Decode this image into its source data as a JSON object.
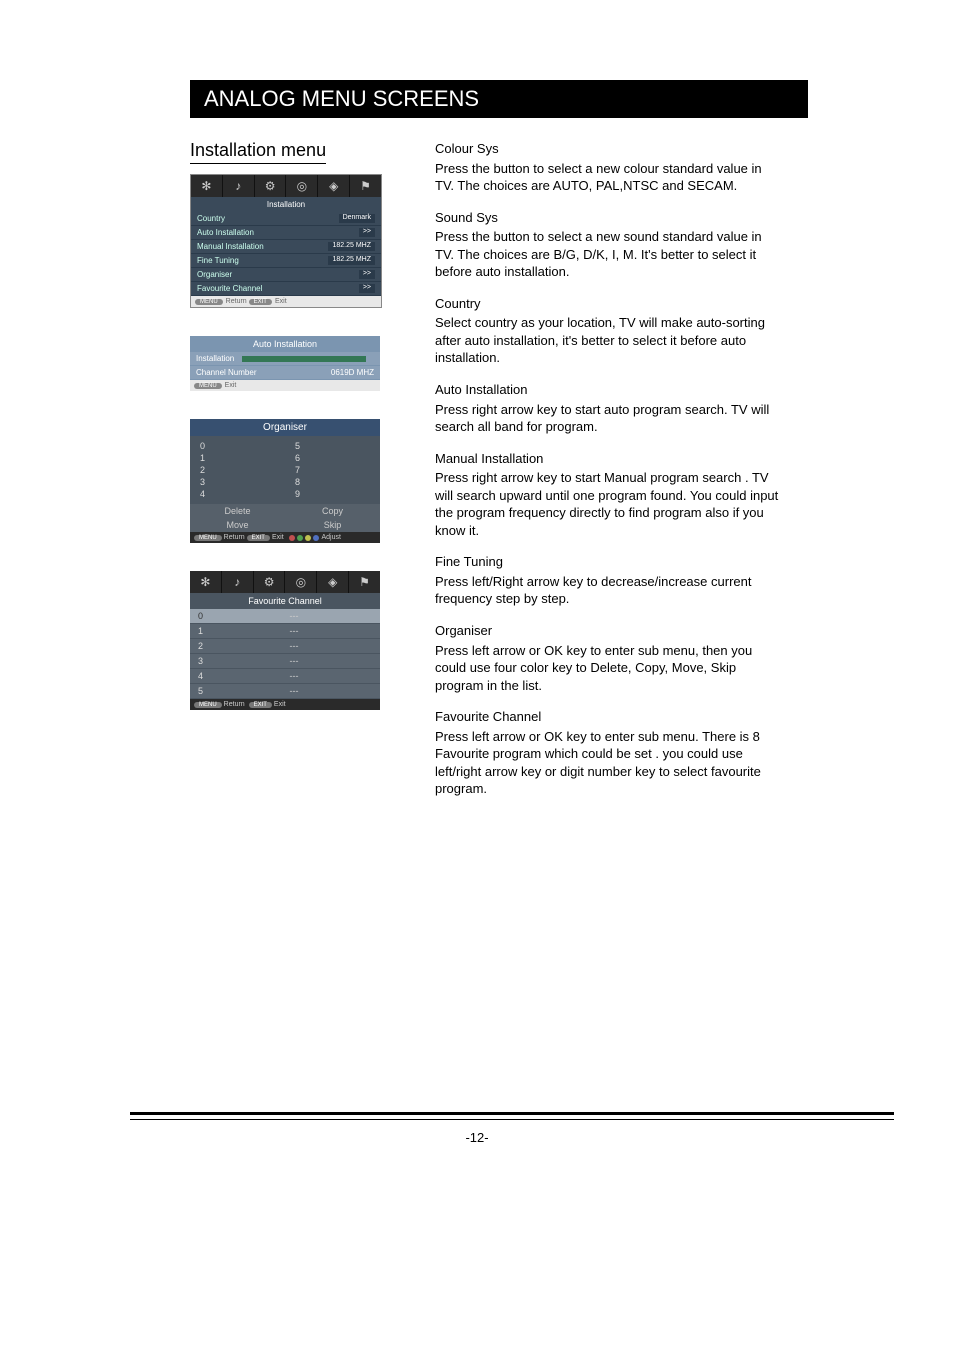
{
  "banner": "ANALOG MENU SCREENS",
  "subhead": "Installation menu",
  "pageNumber": "-12-",
  "inst": {
    "title": "Installation",
    "rows": [
      {
        "l": "Country",
        "r": "Denmark"
      },
      {
        "l": "Auto Installation",
        "r": ">>"
      },
      {
        "l": "Manual Installation",
        "r": "182.25 MHZ"
      },
      {
        "l": "Fine Tuning",
        "r": "182.25 MHZ"
      },
      {
        "l": "Organiser",
        "r": ">>"
      },
      {
        "l": "Favourite Channel",
        "r": ">>"
      }
    ],
    "footReturn": "Return",
    "footExit": "Exit"
  },
  "auto": {
    "title": "Auto Installation",
    "row1l": "Installation",
    "row2l": "Channel Number",
    "row2r": "0619D MHZ",
    "footExit": "Exit"
  },
  "org": {
    "title": "Organiser",
    "left": [
      "0",
      "1",
      "2",
      "3",
      "4"
    ],
    "right": [
      "5",
      "6",
      "7",
      "8",
      "9"
    ],
    "actions": [
      "Delete",
      "Copy",
      "Move",
      "Skip"
    ],
    "footReturn": "Return",
    "footExit": "Exit",
    "footAdjust": "Adjust",
    "dotColors": [
      "#c05050",
      "#50a050",
      "#c0c050",
      "#5070c0"
    ]
  },
  "fav": {
    "title": "Favourite Channel",
    "rows": [
      {
        "idx": "0",
        "val": "---",
        "sel": true
      },
      {
        "idx": "1",
        "val": "---"
      },
      {
        "idx": "2",
        "val": "---"
      },
      {
        "idx": "3",
        "val": "---"
      },
      {
        "idx": "4",
        "val": "---"
      },
      {
        "idx": "5",
        "val": "---"
      }
    ],
    "footReturn": "Return",
    "footExit": "Exit"
  },
  "sections": [
    {
      "t": "Colour Sys",
      "b": "Press the button to select a new colour standard value in TV. The choices are  AUTO, PAL,NTSC and  SECAM."
    },
    {
      "t": "Sound Sys",
      "b": "Press the button to select a new sound standard value in TV. The choices are  B/G, D/K,  I, M.  It's better to select it before auto installation."
    },
    {
      "t": "Country",
      "b": "Select country as your location, TV will make auto-sorting after auto installation, it's better to select it before auto installation."
    },
    {
      "t": "Auto Installation",
      "b": "Press right arrow key to start auto program search. TV will search all band for program."
    },
    {
      "t": "Manual Installation",
      "b": "Press right arrow key to start Manual program search . TV will search upward until one program found. You could input the program frequency directly to find program also if you know it."
    },
    {
      "t": "Fine Tuning",
      "b": "Press left/Right arrow key to decrease/increase current frequency step by step."
    },
    {
      "t": "Organiser",
      "b": "Press left arrow or OK key to enter sub menu, then you could use four color key to Delete, Copy,  Move, Skip program in the list."
    },
    {
      "t": "Favourite Channel",
      "b": "Press left arrow or OK key to enter sub menu. There is 8 Favourite program which could be set . you could use left/right arrow key or digit number key to select favourite program."
    }
  ],
  "icons": [
    "✻",
    "♪",
    "⚙",
    "◎",
    "◈",
    "⚑"
  ]
}
